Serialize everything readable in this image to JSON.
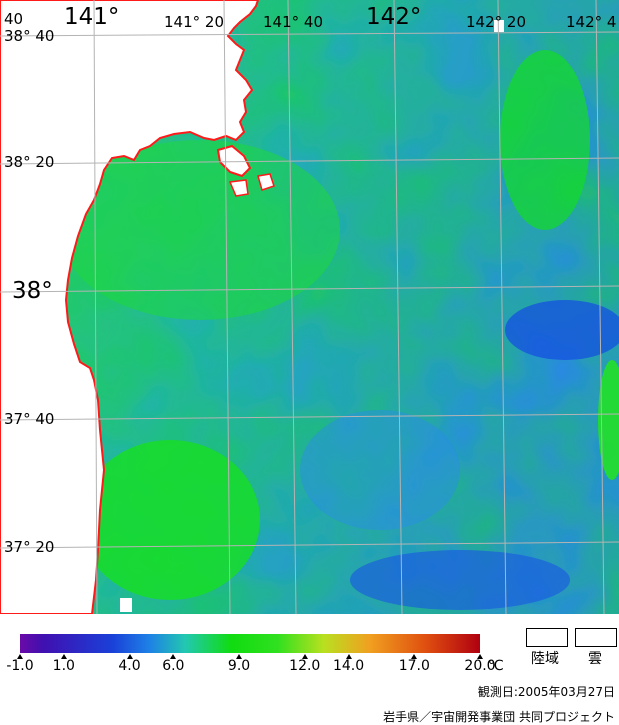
{
  "map": {
    "lon_labels_top": [
      "141°",
      "141° 20",
      "141° 40",
      "142°",
      "142° 20",
      "142° 4"
    ],
    "lon_label_cut_left": "40",
    "lat_labels": [
      "38° 40",
      "38° 20",
      "38°",
      "37° 40",
      "37° 20"
    ]
  },
  "scale": {
    "unit": "℃",
    "ticks": [
      "-1.0",
      "1.0",
      "4.0",
      "6.0",
      "9.0",
      "12.0",
      "14.0",
      "17.0",
      "20.0"
    ],
    "min": -1.0,
    "max": 20.0
  },
  "legend": {
    "land_label": "陸域",
    "cloud_label": "雲"
  },
  "footer": {
    "observation_date": "観測日:2005年03月27日",
    "credit": "岩手県／宇宙開発事業団 共同プロジェクト"
  },
  "colors": {
    "coastline": "#ff0000",
    "land": "#ffffff",
    "grid": "#b4b4b4"
  }
}
